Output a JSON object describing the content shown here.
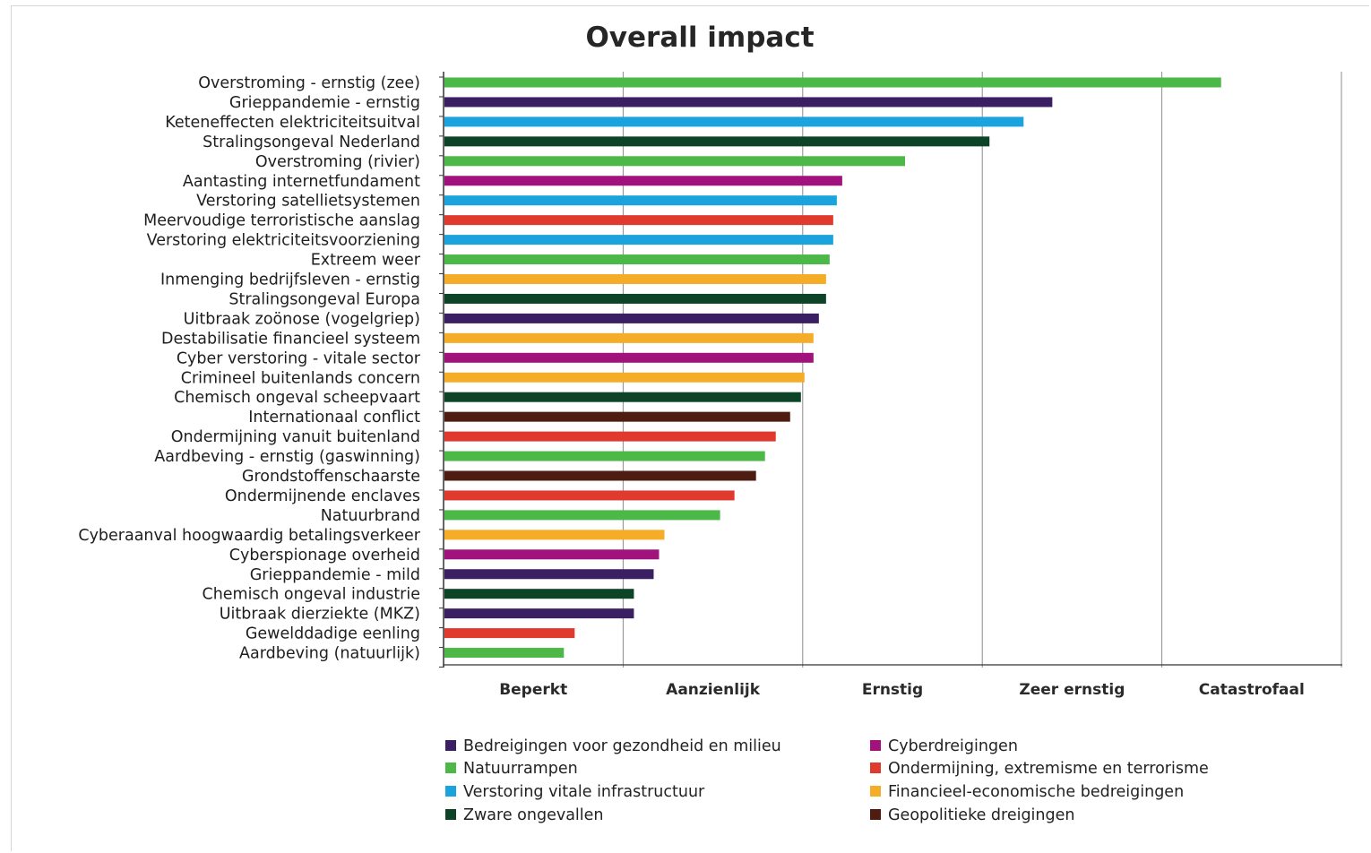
{
  "chart_data": {
    "type": "bar",
    "orientation": "horizontal",
    "title": "Overall impact",
    "xlabel": "",
    "ylabel": "",
    "xlim": [
      0,
      5
    ],
    "grid": true,
    "legend_position": "bottom",
    "x_tick_labels": [
      "Beperkt",
      "Aanzienlijk",
      "Ernstig",
      "Zeer ernstig",
      "Catastrofaal"
    ],
    "categories": [
      "Overstroming - ernstig (zee)",
      "Grieppandemie - ernstig",
      "Keteneffecten elektriciteitsuitval",
      "Stralingsongeval Nederland",
      "Overstroming (rivier)",
      "Aantasting internetfundament",
      "Verstoring satellietsystemen",
      "Meervoudige terroristische aanslag",
      "Verstoring elektriciteitsvoorziening",
      "Extreem weer",
      "Inmenging bedrijfsleven - ernstig",
      "Stralingsongeval Europa",
      "Uitbraak zoönose (vogelgriep)",
      "Destabilisatie financieel systeem",
      "Cyber verstoring - vitale sector",
      "Crimineel buitenlands concern",
      "Chemisch ongeval scheepvaart",
      "Internationaal conflict",
      "Ondermijning vanuit buitenland",
      "Aardbeving - ernstig (gaswinning)",
      "Grondstoffenschaarste",
      "Ondermijnende enclaves",
      "Natuurbrand",
      "Cyberaanval hoogwaardig betalingsverkeer",
      "Cyberspionage overheid",
      "Grieppandemie - mild",
      "Chemisch ongeval industrie",
      "Uitbraak dierziekte (MKZ)",
      "Gewelddadige eenling",
      "Aardbeving (natuurlijk)"
    ],
    "values": [
      4.33,
      3.39,
      3.23,
      3.04,
      2.57,
      2.22,
      2.19,
      2.17,
      2.17,
      2.15,
      2.13,
      2.13,
      2.09,
      2.06,
      2.06,
      2.01,
      1.99,
      1.93,
      1.85,
      1.79,
      1.74,
      1.62,
      1.54,
      1.23,
      1.2,
      1.17,
      1.06,
      1.06,
      0.73,
      0.67
    ],
    "groups": [
      "nat",
      "ges",
      "vit",
      "zwa",
      "nat",
      "cyb",
      "vit",
      "ond",
      "vit",
      "nat",
      "fin",
      "zwa",
      "ges",
      "fin",
      "cyb",
      "fin",
      "zwa",
      "geo",
      "ond",
      "nat",
      "geo",
      "ond",
      "nat",
      "fin",
      "cyb",
      "ges",
      "zwa",
      "ges",
      "ond",
      "nat"
    ],
    "series": [
      {
        "key": "ges",
        "name": "Bedreigingen voor gezondheid en milieu",
        "color": "#3b1f63"
      },
      {
        "key": "nat",
        "name": "Natuurrampen",
        "color": "#4cb848"
      },
      {
        "key": "vit",
        "name": "Verstoring vitale infrastructuur",
        "color": "#1aa3dc"
      },
      {
        "key": "zwa",
        "name": "Zware ongevallen",
        "color": "#0d4427"
      },
      {
        "key": "cyb",
        "name": "Cyberdreigingen",
        "color": "#a1127c"
      },
      {
        "key": "ond",
        "name": "Ondermijning, extremisme en terrorisme",
        "color": "#e03a2f"
      },
      {
        "key": "fin",
        "name": "Financieel-economische bedreigingen",
        "color": "#f5ad28"
      },
      {
        "key": "geo",
        "name": "Geopolitieke dreigingen",
        "color": "#4f1c12"
      }
    ]
  }
}
